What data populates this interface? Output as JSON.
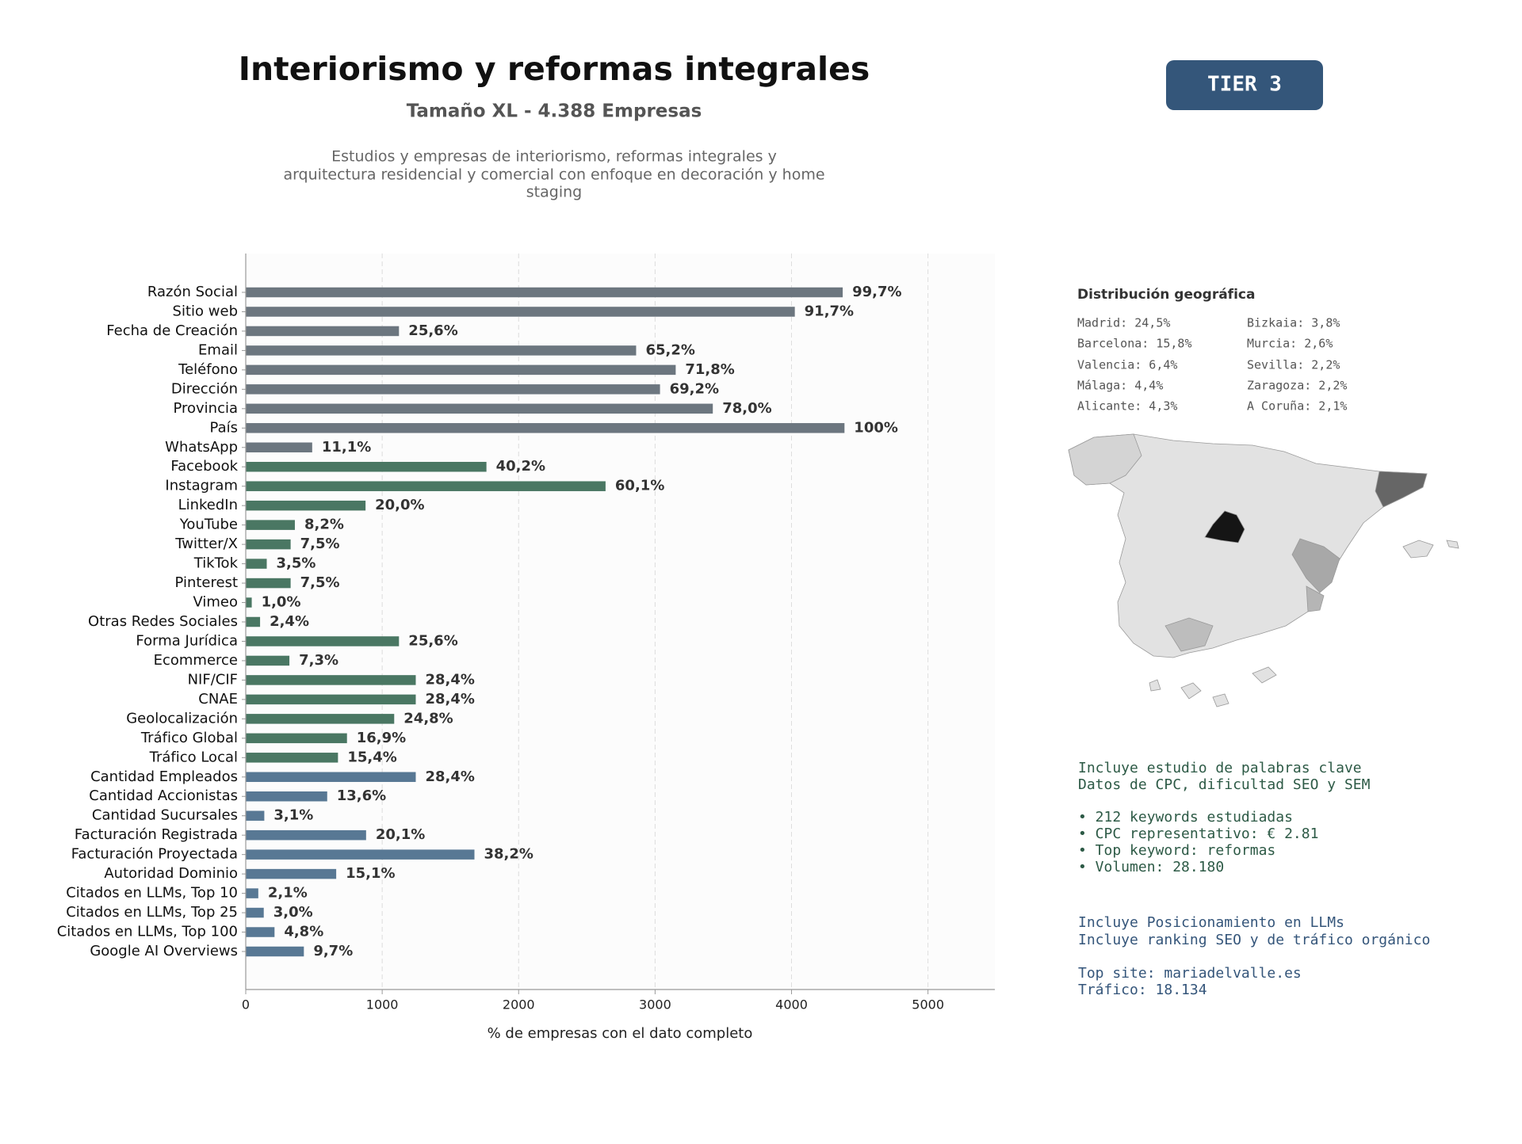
{
  "header": {
    "title": "Interiorismo y reformas integrales",
    "subtitle": "Tamaño XL - 4.388 Empresas",
    "description": [
      "Estudios y empresas de interiorismo, reformas integrales y",
      "arquitectura residencial y comercial con enfoque en decoración y home",
      "staging"
    ],
    "tier": "TIER 3"
  },
  "chart_data": {
    "type": "bar",
    "orientation": "horizontal",
    "xlabel": "% de empresas con el dato completo",
    "categories": [
      "Razón Social",
      "Sitio web",
      "Fecha de Creación",
      "Email",
      "Teléfono",
      "Dirección",
      "Provincia",
      "País",
      "WhatsApp",
      "Facebook",
      "Instagram",
      "LinkedIn",
      "YouTube",
      "Twitter/X",
      "TikTok",
      "Pinterest",
      "Vimeo",
      "Otras Redes Sociales",
      "Forma Jurídica",
      "Ecommerce",
      "NIF/CIF",
      "CNAE",
      "Geolocalización",
      "Tráfico Global",
      "Tráfico Local",
      "Cantidad Empleados",
      "Cantidad Accionistas",
      "Cantidad Sucursales",
      "Facturación Registrada",
      "Facturación Proyectada",
      "Autoridad Dominio",
      "Citados en LLMs, Top 10",
      "Citados en LLMs, Top 25",
      "Citados en LLMs, Top 100",
      "Google AI Overviews"
    ],
    "values": [
      4375,
      4024,
      1123,
      2861,
      3151,
      3036,
      3423,
      4388,
      487,
      1764,
      2637,
      878,
      360,
      329,
      154,
      329,
      44,
      105,
      1123,
      320,
      1246,
      1246,
      1088,
      742,
      676,
      1246,
      597,
      136,
      882,
      1676,
      663,
      92,
      132,
      211,
      426
    ],
    "value_labels": [
      "99,7%",
      "91,7%",
      "25,6%",
      "65,2%",
      "71,8%",
      "69,2%",
      "78,0%",
      "100%",
      "11,1%",
      "40,2%",
      "60,1%",
      "20,0%",
      "8,2%",
      "7,5%",
      "3,5%",
      "7,5%",
      "1,0%",
      "2,4%",
      "25,6%",
      "7,3%",
      "28,4%",
      "28,4%",
      "24,8%",
      "16,9%",
      "15,4%",
      "28,4%",
      "13,6%",
      "3,1%",
      "20,1%",
      "38,2%",
      "15,1%",
      "2,1%",
      "3,0%",
      "4,8%",
      "9,7%"
    ],
    "colors": [
      "#6c767f",
      "#6c767f",
      "#6c767f",
      "#6c767f",
      "#6c767f",
      "#6c767f",
      "#6c767f",
      "#6c767f",
      "#6c767f",
      "#4a7763",
      "#4a7763",
      "#4a7763",
      "#4a7763",
      "#4a7763",
      "#4a7763",
      "#4a7763",
      "#4a7763",
      "#4a7763",
      "#4a7763",
      "#4a7763",
      "#4a7763",
      "#4a7763",
      "#4a7763",
      "#4a7763",
      "#4a7763",
      "#587894",
      "#587894",
      "#587894",
      "#587894",
      "#587894",
      "#587894",
      "#587894",
      "#587894",
      "#587894",
      "#587894"
    ],
    "xlim": [
      0,
      5490
    ],
    "xticks": [
      0,
      1000,
      2000,
      3000,
      4000,
      5000
    ],
    "grid": true
  },
  "geo": {
    "title": "Distribución geográfica",
    "items": [
      "Madrid: 24,5%",
      "Barcelona: 15,8%",
      "Valencia: 6,4%",
      "Málaga: 4,4%",
      "Alicante: 4,3%",
      "Bizkaia: 3,8%",
      "Murcia: 2,6%",
      "Sevilla: 2,2%",
      "Zaragoza: 2,2%",
      "A Coruña: 2,1%"
    ]
  },
  "keywords": [
    "Incluye estudio de palabras clave",
    "Datos de CPC, dificultad SEO y SEM",
    "• 212 keywords estudiadas",
    "• CPC representativo: € 2.81",
    "• Top keyword: reformas",
    "• Volumen: 28.180"
  ],
  "llm": [
    "Incluye Posicionamiento en LLMs",
    "Incluye ranking SEO y de tráfico orgánico",
    "Top site: mariadelvalle.es",
    "Tráfico: 18.134"
  ]
}
